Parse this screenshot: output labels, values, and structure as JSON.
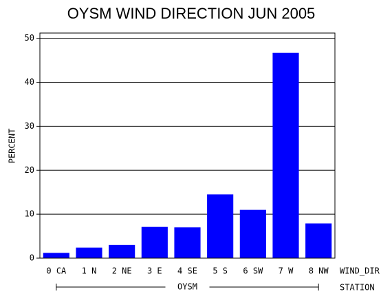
{
  "chart_data": {
    "type": "bar",
    "title": "OYSM WIND DIRECTION JUN 2005",
    "y_label": "PERCENT",
    "x_label": "WIND_DIR",
    "group_axis_label": "STATION",
    "group": "OYSM",
    "categories": [
      "0 CA",
      "1 N",
      "2 NE",
      "3 E",
      "4 SE",
      "5 S",
      "6 SW",
      "7 W",
      "8 NW"
    ],
    "values": [
      1.2,
      2.4,
      3.0,
      7.1,
      7.0,
      14.5,
      11.0,
      46.7,
      7.9
    ],
    "color": "#0000ff",
    "ylim": [
      0,
      51.2
    ],
    "yticks": [
      0,
      10,
      20,
      30,
      40,
      50
    ],
    "grid": true
  }
}
